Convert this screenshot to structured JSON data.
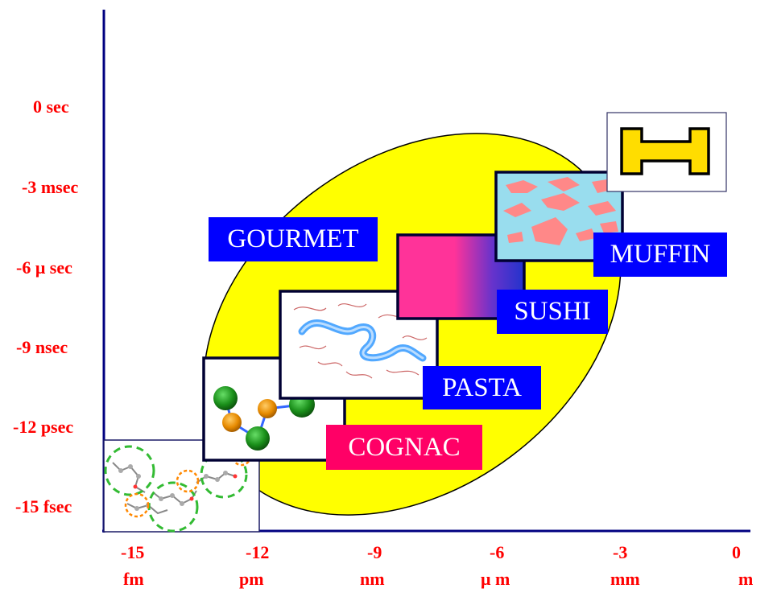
{
  "y_axis": {
    "labels": [
      "0  sec",
      "-3 msec",
      "-6 μ sec",
      "-9  nsec",
      "-12 psec",
      "-15 fsec"
    ]
  },
  "x_axis": {
    "numbers": [
      "-15",
      "-12",
      "-9",
      "-6",
      "-3",
      "0"
    ],
    "units": [
      "fm",
      "pm",
      "nm",
      "μ m",
      "mm",
      "m"
    ]
  },
  "tags": {
    "gourmet": "GOURMET",
    "muffin": "MUFFIN",
    "sushi": "SUSHI",
    "pasta": "PASTA",
    "cognac": "COGNAC"
  },
  "colors": {
    "axis": "#000080",
    "label_red": "#ff0000",
    "ellipse": "#ffff00",
    "tag_blue": "#0000ff",
    "tag_pink": "#ff0066",
    "box_border": "#000033"
  },
  "icons": {
    "molecule": "atomistic-molecule-icon",
    "beads": "bead-chain-icon",
    "polymer": "polymer-chain-icon",
    "gradient": "gradient-block-icon",
    "domains": "domain-pattern-icon",
    "beam": "i-beam-icon"
  }
}
